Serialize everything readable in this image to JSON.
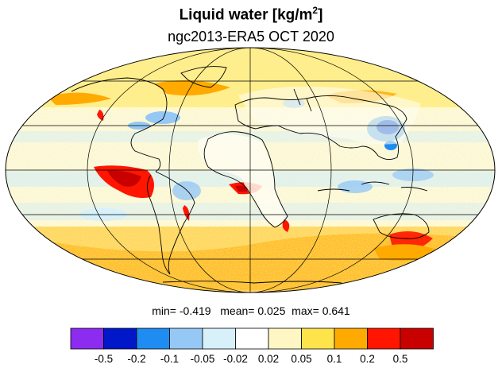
{
  "title": {
    "main": "Liquid water  [kg/m",
    "sup": "2",
    "close": "]",
    "subtitle": "ngc2013-ERA5 OCT 2020"
  },
  "stats": {
    "min_label": "min=",
    "min": "-0.419",
    "mean_label": "mean=",
    "mean": "0.025",
    "max_label": "max=",
    "max": "0.641"
  },
  "colorbar": {
    "colors": [
      "#8c2cf0",
      "#0018c8",
      "#1e8cf0",
      "#96c8f5",
      "#d7f0fa",
      "#ffffff",
      "#fff7c3",
      "#ffe34b",
      "#ffaa00",
      "#ff1500",
      "#c80000"
    ],
    "labels": [
      "-0.5",
      "-0.2",
      "-0.1",
      "-0.05",
      "-0.02",
      "0.02",
      "0.05",
      "0.1",
      "0.2",
      "0.5"
    ]
  }
}
